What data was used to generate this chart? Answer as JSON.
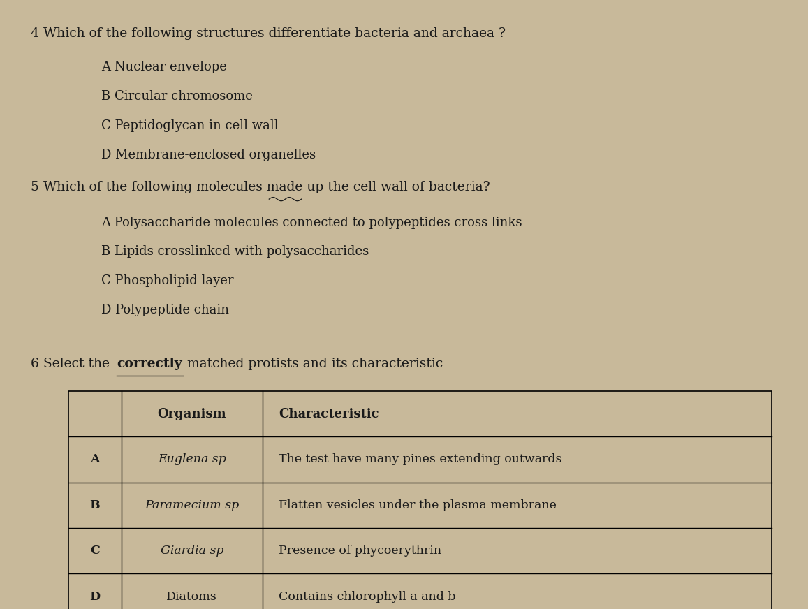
{
  "background_color": "#c8b99a",
  "text_color": "#1a1a1a",
  "q4_number": "4",
  "q4_question": "Which of the following structures differentiate bacteria and archaea ?",
  "q4_options": [
    {
      "letter": "A",
      "text": "Nuclear envelope"
    },
    {
      "letter": "B",
      "text": "Circular chromosome"
    },
    {
      "letter": "C",
      "text": "Peptidoglycan in cell wall"
    },
    {
      "letter": "D",
      "text": "Membrane-enclosed organelles"
    }
  ],
  "q5_number": "5",
  "q5_question": "Which of the following molecules made up the cell wall of bacteria?",
  "q5_underline_word": "made",
  "q5_options": [
    {
      "letter": "A",
      "text": "Polysaccharide molecules connected to polypeptides cross links"
    },
    {
      "letter": "B",
      "text": "Lipids crosslinked with polysaccharides"
    },
    {
      "letter": "C",
      "text": "Phospholipid layer"
    },
    {
      "letter": "D",
      "text": "Polypeptide chain"
    }
  ],
  "q6_number": "6",
  "q6_question_before_bold": "Select the ",
  "q6_question_bold": "correctly",
  "q6_question_after_bold": " matched protists and its characteristic",
  "table_headers": [
    "",
    "Organism",
    "Characteristic"
  ],
  "table_rows": [
    [
      "A",
      "Euglena sp",
      "The test have many pines extending outwards"
    ],
    [
      "B",
      "Paramecium sp",
      "Flatten vesicles under the plasma membrane"
    ],
    [
      "C",
      "Giardia sp",
      "Presence of phycoerythrin"
    ],
    [
      "D",
      "Diatoms",
      "Contains chlorophyll a and b"
    ]
  ],
  "font_size_question": 13.5,
  "font_size_option": 13.0,
  "font_size_table": 12.5
}
